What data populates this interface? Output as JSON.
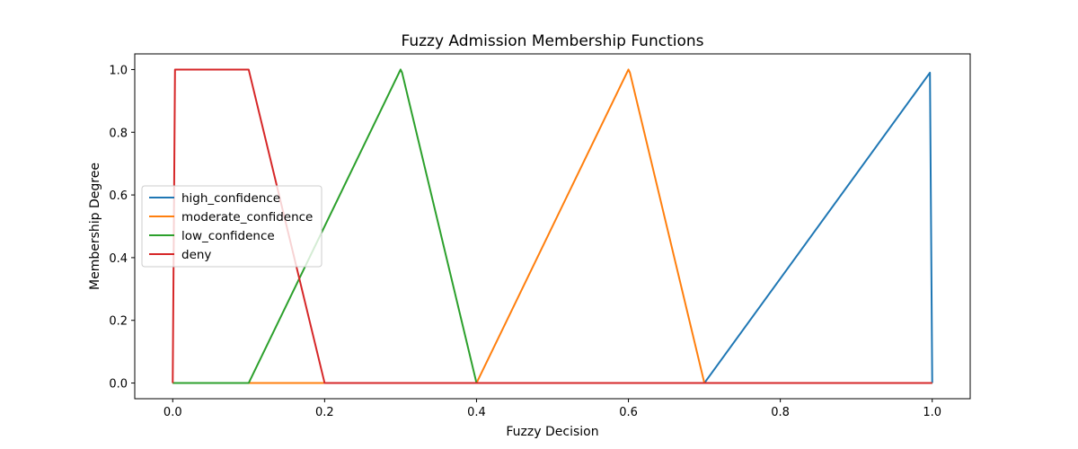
{
  "chart_data": {
    "type": "line",
    "title": "Fuzzy Admission Membership Functions",
    "xlabel": "Fuzzy Decision",
    "ylabel": "Membership Degree",
    "xlim": [
      -0.05,
      1.05
    ],
    "ylim": [
      -0.05,
      1.05
    ],
    "xticks": [
      0.0,
      0.2,
      0.4,
      0.6,
      0.8,
      1.0
    ],
    "xtick_labels": [
      "0.0",
      "0.2",
      "0.4",
      "0.6",
      "0.8",
      "1.0"
    ],
    "yticks": [
      0.0,
      0.2,
      0.4,
      0.6,
      0.8,
      1.0
    ],
    "ytick_labels": [
      "0.0",
      "0.2",
      "0.4",
      "0.6",
      "0.8",
      "1.0"
    ],
    "grid": false,
    "legend_position": "center-left",
    "series": [
      {
        "name": "high_confidence",
        "color": "#1f77b4",
        "x": [
          0,
          0.7,
          0.997,
          1.0
        ],
        "y": [
          0,
          0,
          0.99,
          0
        ]
      },
      {
        "name": "moderate_confidence",
        "color": "#ff7f0e",
        "x": [
          0,
          0.4,
          0.598,
          0.6,
          0.602,
          0.7,
          1.0
        ],
        "y": [
          0,
          0,
          0.99,
          1.0,
          0.99,
          0,
          0
        ]
      },
      {
        "name": "low_confidence",
        "color": "#2ca02c",
        "x": [
          0,
          0.1,
          0.298,
          0.3,
          0.302,
          0.4,
          1.0
        ],
        "y": [
          0,
          0,
          0.99,
          1.0,
          0.99,
          0,
          0
        ]
      },
      {
        "name": "deny",
        "color": "#d62728",
        "x": [
          0,
          0.003,
          0.1,
          0.2,
          1.0
        ],
        "y": [
          0,
          1.0,
          1.0,
          0,
          0
        ]
      }
    ]
  }
}
